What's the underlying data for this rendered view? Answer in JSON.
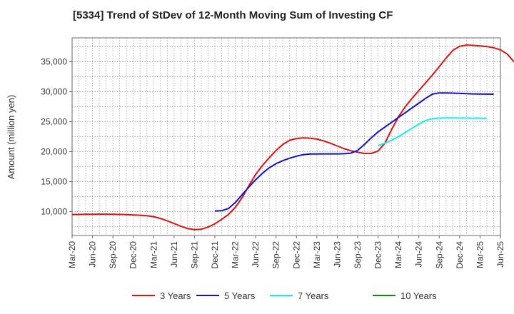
{
  "chart_data": {
    "type": "line",
    "title": "[5334]  Trend of StDev of 12-Month Moving Sum of Investing CF",
    "xlabel": "",
    "ylabel": "Amount (million yen)",
    "ylim": [
      6000,
      39000
    ],
    "yticks": [
      10000,
      15000,
      20000,
      25000,
      30000,
      35000
    ],
    "ytick_labels": [
      "10,000",
      "15,000",
      "20,000",
      "25,000",
      "30,000",
      "35,000"
    ],
    "x_tick_labels": [
      "Mar-20",
      "Jun-20",
      "Sep-20",
      "Dec-20",
      "Mar-21",
      "Jun-21",
      "Sep-21",
      "Dec-21",
      "Mar-22",
      "Jun-22",
      "Sep-22",
      "Dec-22",
      "Mar-23",
      "Jun-23",
      "Sep-23",
      "Dec-23",
      "Mar-24",
      "Jun-24",
      "Sep-24",
      "Dec-24",
      "Mar-25",
      "Jun-25"
    ],
    "grid": true,
    "legend_position": "bottom",
    "series": [
      {
        "name": "3 Years",
        "color": "#dd1111",
        "x_start_month": 0,
        "values": [
          9500,
          9520,
          9540,
          9550,
          9560,
          9560,
          9550,
          9520,
          9480,
          9430,
          9380,
          9300,
          9150,
          8850,
          8450,
          8000,
          7550,
          7150,
          6980,
          7050,
          7400,
          7950,
          8700,
          9500,
          10700,
          12300,
          14300,
          16200,
          17700,
          19000,
          20200,
          21200,
          21900,
          22200,
          22300,
          22250,
          22100,
          21800,
          21400,
          20950,
          20500,
          20150,
          19900,
          19700,
          19700,
          20100,
          21400,
          23700,
          25800,
          27500,
          28900,
          30200,
          31500,
          32800,
          34200,
          35600,
          36900,
          37600,
          37800,
          37750,
          37650,
          37550,
          37350,
          37000,
          36300,
          35000
        ]
      },
      {
        "name": "5 Years",
        "color": "#1111cc",
        "x_start_month": 21,
        "values": [
          10100,
          10150,
          10500,
          11500,
          12800,
          14100,
          15300,
          16400,
          17300,
          18000,
          18500,
          18900,
          19250,
          19500,
          19600,
          19620,
          19630,
          19630,
          19630,
          19650,
          19750,
          20200,
          21200,
          22300,
          23300,
          24100,
          24900,
          25700,
          26500,
          27300,
          28100,
          28900,
          29600,
          29800,
          29800,
          29770,
          29720,
          29680,
          29640,
          29610,
          29600,
          29590
        ]
      },
      {
        "name": "7 Years",
        "color": "#11eeee",
        "x_start_month": 45,
        "values": [
          21000,
          21400,
          21900,
          22500,
          23200,
          23900,
          24600,
          25200,
          25500,
          25600,
          25620,
          25620,
          25610,
          25600,
          25590,
          25580,
          25560
        ]
      },
      {
        "name": "10 Years",
        "color": "#118811",
        "x_start_month": 0,
        "values": []
      }
    ]
  }
}
